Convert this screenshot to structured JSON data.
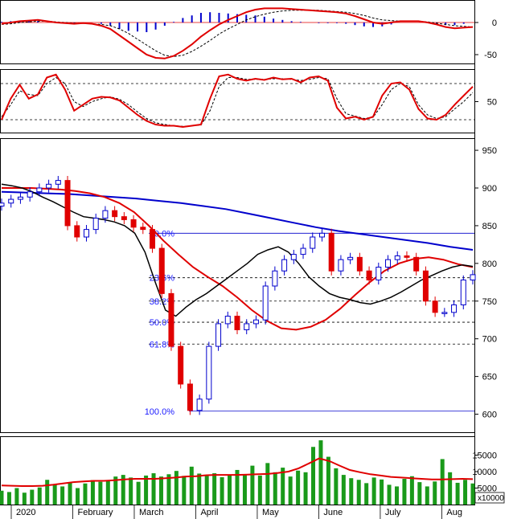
{
  "chart_data": {
    "type": "candlestick",
    "colors": {
      "up": "#0000cc",
      "down": "#e00000",
      "ma_fast": "#000000",
      "ma_mid": "#e00000",
      "ma_slow": "#0000cc",
      "volume_bar": "#1a9a1a",
      "volume_ma": "#e00000",
      "fib": "#0000cc"
    },
    "x_axis": {
      "labels": [
        "2020",
        "February",
        "March",
        "April",
        "May",
        "June",
        "July",
        "Aug"
      ]
    },
    "macd": {
      "yticks": [
        0,
        -50
      ],
      "ylim": [
        -60,
        30
      ],
      "macd": [
        -2,
        0,
        2,
        3,
        4,
        2,
        0,
        -1,
        -2,
        -1,
        -2,
        -5,
        -10,
        -20,
        -30,
        -40,
        -50,
        -55,
        -56,
        -52,
        -44,
        -34,
        -22,
        -12,
        -3,
        4,
        10,
        16,
        20,
        22,
        22,
        22,
        21,
        20,
        19,
        18,
        17,
        16,
        14,
        10,
        5,
        0,
        -2,
        0,
        2,
        2,
        2,
        0,
        -3,
        -7,
        -9,
        -8,
        -7
      ],
      "signal": [
        -3,
        -2,
        0,
        1,
        2,
        2,
        1,
        0,
        -1,
        -1,
        -2,
        -3,
        -5,
        -10,
        -17,
        -26,
        -35,
        -44,
        -51,
        -53,
        -51,
        -45,
        -37,
        -28,
        -18,
        -10,
        -3,
        4,
        9,
        13,
        16,
        18,
        19,
        19,
        19,
        19,
        18,
        17,
        16,
        14,
        11,
        7,
        4,
        3,
        2,
        2,
        2,
        1,
        -1,
        -3,
        -5,
        -6,
        -7
      ],
      "histogram": [
        1,
        2,
        2,
        2,
        2,
        0,
        -1,
        -1,
        -1,
        0,
        0,
        -2,
        -5,
        -10,
        -13,
        -14,
        -15,
        -11,
        -5,
        1,
        7,
        11,
        15,
        16,
        15,
        14,
        13,
        12,
        11,
        9,
        6,
        4,
        2,
        1,
        0,
        -1,
        -1,
        -1,
        -2,
        -4,
        -6,
        -7,
        -6,
        -3,
        0,
        0,
        0,
        -1,
        -2,
        -4,
        -4,
        -2,
        0
      ]
    },
    "stochastic": {
      "yticks": [
        50
      ],
      "ylim": [
        0,
        100
      ],
      "bands": [
        80,
        20
      ],
      "k": [
        20,
        55,
        78,
        55,
        62,
        90,
        95,
        70,
        35,
        45,
        55,
        58,
        57,
        52,
        40,
        28,
        18,
        12,
        10,
        10,
        8,
        10,
        12,
        55,
        92,
        95,
        88,
        85,
        88,
        86,
        90,
        87,
        88,
        82,
        90,
        92,
        85,
        40,
        22,
        25,
        20,
        25,
        60,
        80,
        82,
        70,
        38,
        22,
        20,
        28,
        45,
        60,
        75
      ],
      "d": [
        25,
        45,
        68,
        62,
        60,
        80,
        90,
        80,
        50,
        42,
        50,
        55,
        58,
        54,
        45,
        33,
        22,
        15,
        12,
        10,
        9,
        10,
        11,
        35,
        75,
        90,
        90,
        87,
        87,
        87,
        88,
        88,
        87,
        85,
        87,
        90,
        88,
        55,
        30,
        26,
        22,
        24,
        45,
        70,
        80,
        75,
        45,
        28,
        22,
        25,
        38,
        50,
        65
      ]
    },
    "price": {
      "yticks": [
        950,
        900,
        850,
        800,
        750,
        700,
        650,
        600
      ],
      "ylim": [
        575,
        965
      ],
      "close": [
        880,
        885,
        888,
        895,
        900,
        905,
        910,
        850,
        835,
        845,
        860,
        870,
        862,
        858,
        848,
        845,
        820,
        760,
        690,
        640,
        605,
        620,
        690,
        720,
        730,
        712,
        720,
        725,
        770,
        790,
        805,
        812,
        820,
        835,
        840,
        790,
        805,
        808,
        790,
        778,
        795,
        805,
        810,
        808,
        790,
        750,
        735,
        735,
        745,
        778,
        785
      ],
      "ma_fast": [
        905,
        903,
        900,
        895,
        888,
        882,
        875,
        868,
        862,
        860,
        858,
        855,
        850,
        840,
        815,
        775,
        738,
        730,
        742,
        752,
        760,
        770,
        780,
        790,
        800,
        812,
        818,
        822,
        815,
        800,
        782,
        770,
        760,
        755,
        752,
        748,
        746,
        750,
        755,
        762,
        770,
        778,
        784,
        790,
        795,
        798,
        796
      ],
      "ma_mid": [
        900,
        900,
        900,
        899,
        898,
        896,
        893,
        888,
        880,
        868,
        850,
        830,
        812,
        795,
        782,
        770,
        755,
        738,
        724,
        714,
        712,
        716,
        725,
        740,
        758,
        775,
        790,
        800,
        806,
        808,
        805,
        799,
        795
      ],
      "ma_slow": [
        895,
        894,
        893,
        892,
        890,
        888,
        886,
        883,
        880,
        876,
        872,
        866,
        860,
        854,
        848,
        843,
        839,
        835,
        831,
        827,
        822,
        818
      ]
    },
    "fibonacci": {
      "labels": [
        "0.0%",
        "23.6%",
        "38.2%",
        "50.0%",
        "61.8%",
        "100.0%"
      ],
      "levels": [
        840,
        781,
        750,
        722,
        693,
        604
      ]
    },
    "volume": {
      "yticks": [
        15000,
        10000,
        5000
      ],
      "unit_label": "x10000",
      "ylim": [
        0,
        20000
      ],
      "values": [
        4200,
        3800,
        5000,
        3600,
        4500,
        5200,
        7500,
        6200,
        5500,
        6800,
        5000,
        6400,
        7400,
        6900,
        7200,
        8500,
        9000,
        8200,
        6900,
        8800,
        9500,
        8500,
        9200,
        10200,
        8700,
        11500,
        9400,
        8700,
        9500,
        8300,
        9000,
        10500,
        9000,
        11800,
        8800,
        12600,
        9800,
        11200,
        8500,
        10300,
        9800,
        17500,
        19500,
        14500,
        11000,
        9000,
        8000,
        7500,
        6500,
        8200,
        7600,
        6000,
        5500,
        7800,
        8600,
        6800,
        5500,
        7000,
        13800,
        9800,
        6600,
        7500,
        6400
      ],
      "ma": [
        5800,
        5700,
        5600,
        5600,
        5700,
        6000,
        6400,
        6800,
        7000,
        7200,
        7200,
        7400,
        7600,
        7800,
        7800,
        7800,
        8000,
        8200,
        8500,
        8600,
        8900,
        9000,
        9000,
        9000,
        9100,
        9200,
        9300,
        9600,
        10000,
        11000,
        12500,
        14000,
        13200,
        11800,
        10500,
        9800,
        9200,
        8800,
        8400,
        8200,
        8000,
        7800,
        7600,
        7600,
        7700,
        7800,
        7700
      ]
    }
  }
}
